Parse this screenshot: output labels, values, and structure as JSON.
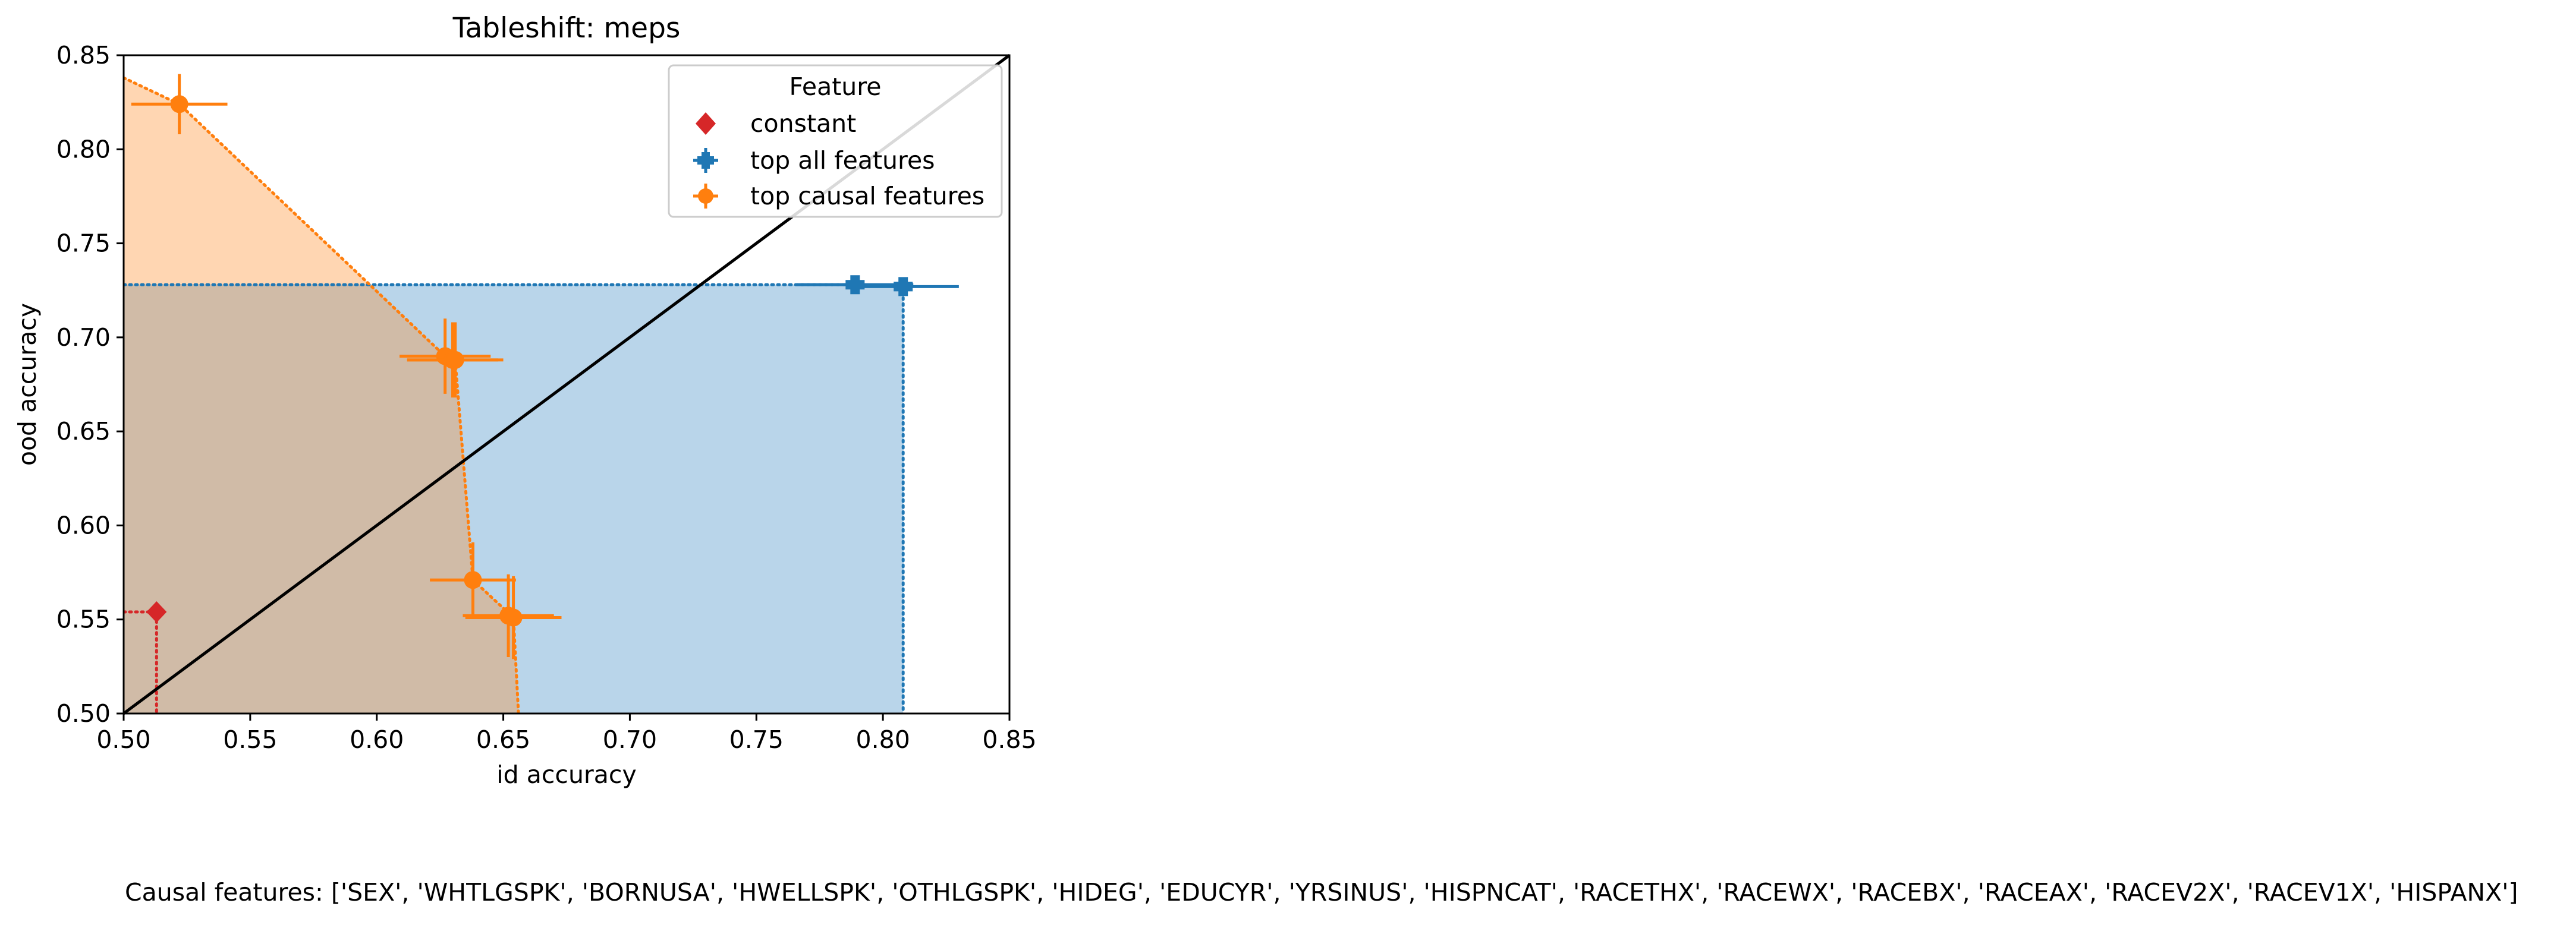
{
  "chart_data": {
    "type": "scatter",
    "title": "Tableshift: meps",
    "xlabel": "id accuracy",
    "ylabel": "ood accuracy",
    "xlim": [
      0.5,
      0.85
    ],
    "ylim": [
      0.5,
      0.85
    ],
    "xticks": [
      "0.50",
      "0.55",
      "0.60",
      "0.65",
      "0.70",
      "0.75",
      "0.80",
      "0.85"
    ],
    "yticks": [
      "0.50",
      "0.55",
      "0.60",
      "0.65",
      "0.70",
      "0.75",
      "0.80",
      "0.85"
    ],
    "grid": false,
    "diagonal": true,
    "legend": {
      "title": "Feature",
      "placement": "top-right",
      "entries": [
        "constant",
        "top all features",
        "top causal features"
      ]
    },
    "colors": {
      "constant": "#d62728",
      "all": "#1f77b4",
      "causal": "#ff7f0e",
      "all_fill": "#b9d5ea",
      "causal_fill": "#ffd6b2",
      "overlap_fill": "#d0bba7"
    },
    "series": [
      {
        "key": "constant",
        "marker": "diamond",
        "points": [
          {
            "x": 0.513,
            "y": 0.554
          }
        ]
      },
      {
        "key": "all",
        "marker": "plus",
        "points": [
          {
            "x": 0.789,
            "y": 0.728,
            "xerr": [
              0.023,
              0.023
            ],
            "yerr": [
              0.004,
              0.004
            ]
          },
          {
            "x": 0.808,
            "y": 0.727,
            "xerr": [
              0.022,
              0.022
            ],
            "yerr": [
              0.004,
              0.004
            ]
          }
        ]
      },
      {
        "key": "causal",
        "marker": "circle",
        "points": [
          {
            "x": 0.522,
            "y": 0.824,
            "xerr": [
              0.019,
              0.019
            ],
            "yerr": [
              0.016,
              0.016
            ]
          },
          {
            "x": 0.627,
            "y": 0.69,
            "xerr": [
              0.018,
              0.018
            ],
            "yerr": [
              0.02,
              0.02
            ]
          },
          {
            "x": 0.63,
            "y": 0.688,
            "xerr": [
              0.018,
              0.018
            ],
            "yerr": [
              0.02,
              0.02
            ]
          },
          {
            "x": 0.631,
            "y": 0.688,
            "xerr": [
              0.019,
              0.019
            ],
            "yerr": [
              0.02,
              0.02
            ]
          },
          {
            "x": 0.638,
            "y": 0.571,
            "xerr": [
              0.017,
              0.017
            ],
            "yerr": [
              0.02,
              0.02
            ]
          },
          {
            "x": 0.652,
            "y": 0.552,
            "xerr": [
              0.018,
              0.018
            ],
            "yerr": [
              0.022,
              0.022
            ]
          },
          {
            "x": 0.654,
            "y": 0.551,
            "xerr": [
              0.019,
              0.019
            ],
            "yerr": [
              0.022,
              0.022
            ]
          }
        ]
      }
    ],
    "frontiers": {
      "constant": [
        [
          0.5,
          0.554
        ],
        [
          0.513,
          0.554
        ],
        [
          0.513,
          0.5
        ]
      ],
      "all": [
        [
          0.5,
          0.728
        ],
        [
          0.789,
          0.728
        ],
        [
          0.808,
          0.727
        ],
        [
          0.808,
          0.5
        ]
      ],
      "causal": [
        [
          0.5,
          0.838
        ],
        [
          0.522,
          0.824
        ],
        [
          0.627,
          0.69
        ],
        [
          0.631,
          0.688
        ],
        [
          0.638,
          0.571
        ],
        [
          0.654,
          0.551
        ],
        [
          0.656,
          0.5
        ]
      ]
    }
  },
  "caption": "Causal features: ['SEX', 'WHTLGSPK', 'BORNUSA', 'HWELLSPK', 'OTHLGSPK', 'HIDEG', 'EDUCYR', 'YRSINUS', 'HISPNCAT', 'RACETHX', 'RACEWX', 'RACEBX', 'RACEAX', 'RACEV2X', 'RACEV1X', 'HISPANX']"
}
